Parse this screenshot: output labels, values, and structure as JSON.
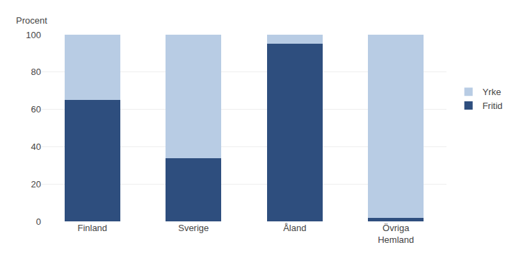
{
  "chart_data": {
    "type": "bar",
    "stacked": true,
    "ylabel": "Procent",
    "categories": [
      "Finland",
      "Sverige",
      "Åland",
      "Övriga\nHemland"
    ],
    "series": [
      {
        "name": "Fritid",
        "color": "#2e4e7e",
        "values": [
          65,
          34,
          95,
          2
        ]
      },
      {
        "name": "Yrke",
        "color": "#b8cce4",
        "values": [
          35,
          66,
          5,
          98
        ]
      }
    ],
    "ylim": [
      0,
      100
    ],
    "yticks": [
      0,
      20,
      40,
      60,
      80,
      100
    ],
    "grid": true,
    "legend": "right"
  }
}
